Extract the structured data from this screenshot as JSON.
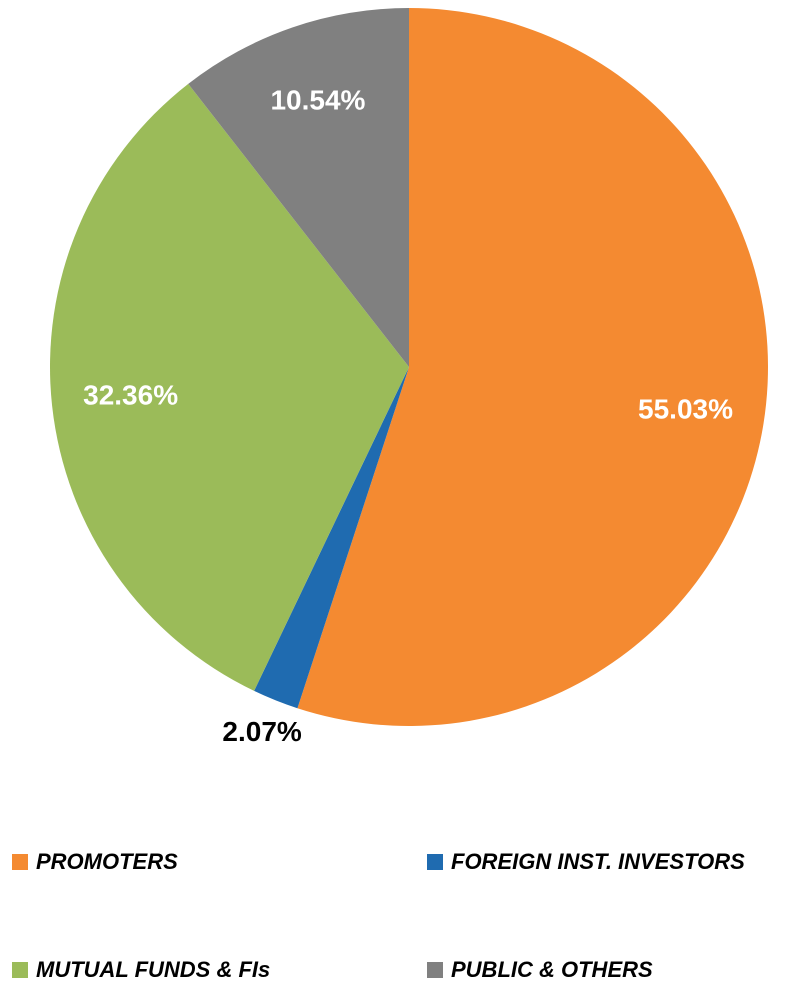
{
  "chart_data": {
    "type": "pie",
    "categories": [
      "PROMOTERS",
      "FOREIGN INST. INVESTORS",
      "MUTUAL FUNDS & FIs",
      "PUBLIC & OTHERS"
    ],
    "values": [
      55.03,
      2.07,
      32.36,
      10.54
    ],
    "value_labels": [
      "55.03%",
      "2.07%",
      "32.36%",
      "10.54%"
    ],
    "colors": [
      "#f48a31",
      "#1f6bb0",
      "#9bbb59",
      "#808080"
    ]
  }
}
